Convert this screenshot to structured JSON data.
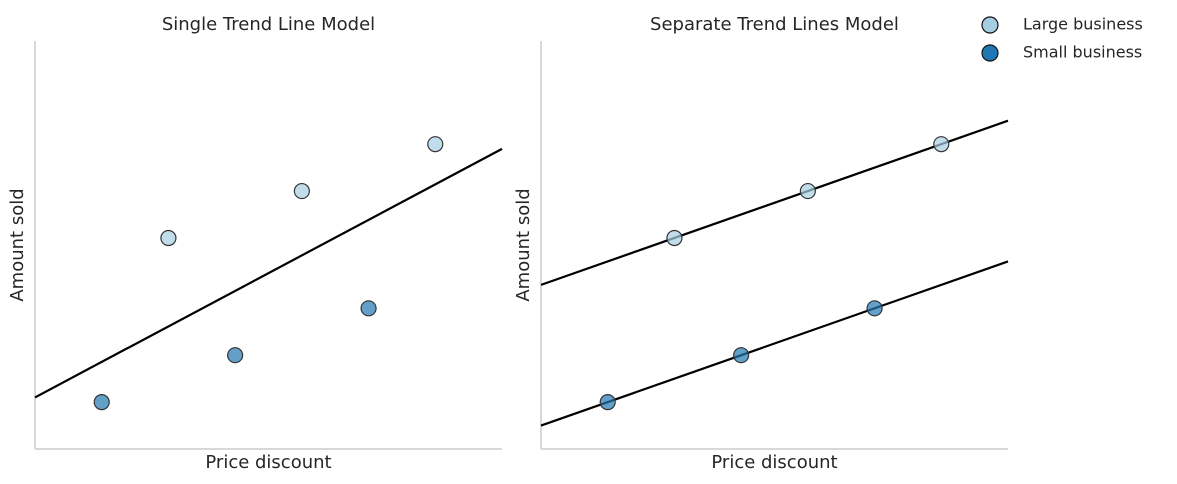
{
  "chart_data": [
    {
      "type": "scatter",
      "title": "Single Trend Line Model",
      "x_label": "Price discount",
      "y_label": "Amount sold",
      "xlim": [
        0,
        7
      ],
      "ylim": [
        0,
        8.7
      ],
      "series": [
        {
          "color": "#a6cee3",
          "x": [
            2,
            4,
            6
          ],
          "values": [
            4.5,
            5.5,
            6.5
          ]
        },
        {
          "color": "#1f78b4",
          "x": [
            1,
            3,
            5
          ],
          "values": [
            1,
            2,
            3
          ]
        }
      ],
      "lines": [
        {
          "color": "#000000",
          "x": [
            0,
            7
          ],
          "values": [
            1.1,
            6.4
          ]
        }
      ]
    },
    {
      "type": "scatter",
      "title": "Separate Trend Lines Model",
      "x_label": "Price discount",
      "y_label": "Amount sold",
      "xlim": [
        0,
        7
      ],
      "ylim": [
        0,
        8.7
      ],
      "series": [
        {
          "name": "Large business",
          "color": "#a6cee3",
          "x": [
            2,
            4,
            6
          ],
          "values": [
            4.5,
            5.5,
            6.5
          ]
        },
        {
          "name": "Small business",
          "color": "#1f78b4",
          "x": [
            1,
            3,
            5
          ],
          "values": [
            1,
            2,
            3
          ]
        }
      ],
      "lines": [
        {
          "color": "#000000",
          "x": [
            0,
            7
          ],
          "values": [
            3.5,
            7
          ]
        },
        {
          "color": "#000000",
          "x": [
            0,
            7
          ],
          "values": [
            0.5,
            4
          ]
        }
      ]
    }
  ]
}
